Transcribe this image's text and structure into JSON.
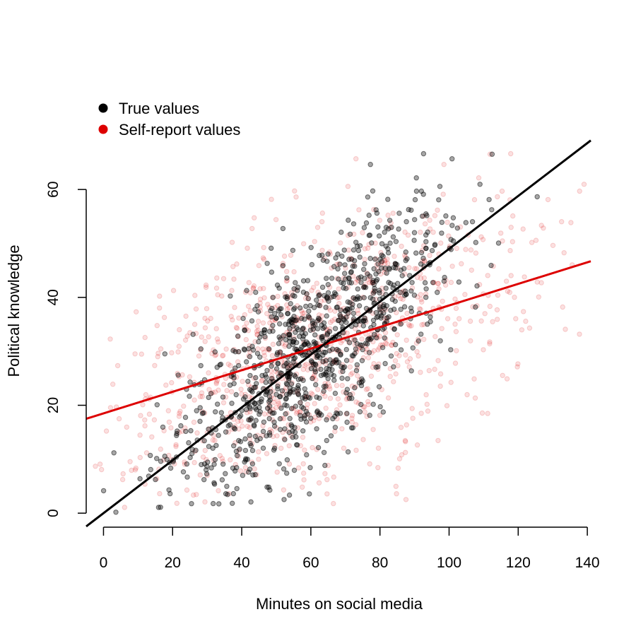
{
  "chart_data": {
    "type": "scatter",
    "xlabel": "Minutes on social media",
    "ylabel": "Political knowledge",
    "xlim": [
      -5,
      141
    ],
    "ylim": [
      -0.5,
      76
    ],
    "xticks": [
      0,
      20,
      40,
      60,
      80,
      100,
      120,
      140
    ],
    "yticks": [
      0,
      20,
      40,
      60
    ],
    "grid": false,
    "legend_position": "top-left",
    "series": [
      {
        "name": "True values",
        "color": "#000000",
        "marker": "filled circle, semi-transparent",
        "opacity": 0.35,
        "count_approx": 1000,
        "x_center": 60,
        "x_sd": 20,
        "y_center": 30,
        "y_sd": 13,
        "fit_line": {
          "intercept": 0,
          "slope": 0.49,
          "x_from": -5,
          "x_to": 141
        }
      },
      {
        "name": "Self-report values",
        "color": "#dd0000",
        "marker": "filled circle, semi-transparent",
        "opacity": 0.12,
        "count_approx": 1000,
        "x_center": 60,
        "x_sd": 30,
        "y_center": 30,
        "y_sd": 13,
        "fit_line": {
          "intercept": 18.5,
          "slope": 0.2,
          "x_from": -5,
          "x_to": 141
        }
      }
    ]
  }
}
